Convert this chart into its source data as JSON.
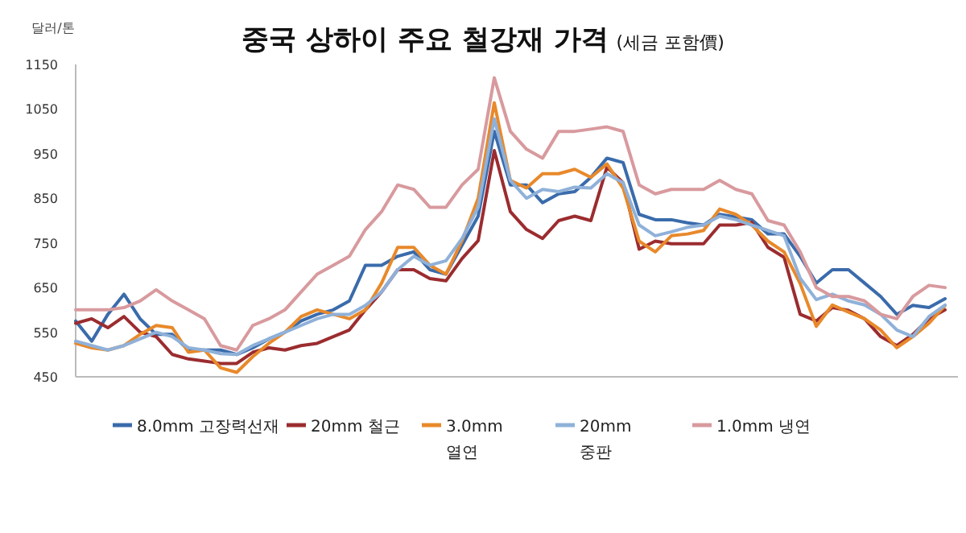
{
  "chart_data": {
    "type": "line",
    "title": "중국 상하이 주요 철강재 가격",
    "subtitle": "(세금 포함價)",
    "ylabel": "달러/톤",
    "categories": [
      null,
      null,
      null,
      null,
      null,
      null,
      null,
      null,
      null,
      null,
      null,
      null,
      null,
      null,
      null,
      null,
      null,
      null,
      null,
      null,
      null,
      null,
      null,
      null,
      null,
      null,
      null,
      null,
      null,
      null,
      null,
      null,
      null,
      null,
      null,
      null,
      null,
      null,
      null,
      null,
      null,
      null,
      null,
      null,
      null,
      null,
      null,
      null,
      null,
      null,
      null,
      null,
      null,
      null,
      null
    ],
    "ylim": [
      450,
      1150
    ],
    "yticks": [
      450,
      550,
      650,
      750,
      850,
      950,
      1050,
      1150
    ],
    "tick_labels": "y",
    "legend": "bottom",
    "grid": false,
    "series": [
      {
        "name": "8.0mm 고장력선재",
        "color": "#3a6bab",
        "values": [
          575,
          530,
          590,
          635,
          580,
          545,
          545,
          510,
          510,
          510,
          500,
          515,
          535,
          550,
          575,
          590,
          600,
          620,
          700,
          700,
          720,
          730,
          690,
          680,
          745,
          810,
          1000,
          880,
          880,
          840,
          860,
          865,
          897,
          940,
          930,
          814,
          802,
          802,
          795,
          790,
          814,
          808,
          802,
          770,
          770,
          720,
          660,
          690,
          690,
          660,
          630,
          590,
          610,
          605,
          625
        ]
      },
      {
        "name": "20mm 철근",
        "color": "#9b2c2f",
        "values": [
          570,
          580,
          560,
          585,
          550,
          540,
          500,
          490,
          485,
          480,
          480,
          505,
          515,
          510,
          520,
          525,
          540,
          555,
          600,
          640,
          690,
          690,
          670,
          665,
          715,
          755,
          957,
          820,
          780,
          760,
          800,
          810,
          800,
          920,
          885,
          736,
          754,
          748,
          748,
          748,
          790,
          790,
          796,
          740,
          718,
          590,
          575,
          605,
          599,
          580,
          540,
          520,
          545,
          580,
          600
        ]
      },
      {
        "name": "3.0mm 열연",
        "color": "#e8892b",
        "values": [
          525,
          515,
          510,
          520,
          545,
          565,
          560,
          505,
          510,
          470,
          460,
          495,
          525,
          550,
          585,
          600,
          590,
          580,
          600,
          660,
          740,
          740,
          700,
          680,
          755,
          850,
          1064,
          890,
          873,
          905,
          905,
          915,
          897,
          927,
          873,
          754,
          730,
          766,
          770,
          778,
          826,
          814,
          790,
          754,
          730,
          659,
          563,
          611,
          595,
          580,
          555,
          515,
          540,
          570,
          610
        ]
      },
      {
        "name": "20mm 중판",
        "color": "#8fb1d9",
        "values": [
          530,
          520,
          510,
          520,
          535,
          550,
          540,
          515,
          510,
          502,
          500,
          520,
          535,
          550,
          565,
          580,
          590,
          590,
          610,
          640,
          690,
          720,
          700,
          710,
          760,
          830,
          1028,
          890,
          850,
          870,
          865,
          875,
          873,
          905,
          885,
          790,
          766,
          775,
          785,
          790,
          810,
          802,
          790,
          778,
          766,
          671,
          623,
          635,
          620,
          611,
          590,
          555,
          540,
          585,
          611
        ]
      },
      {
        "name": "1.0mm 냉연",
        "color": "#d89a9e",
        "values": [
          600,
          600,
          600,
          605,
          620,
          645,
          620,
          600,
          580,
          520,
          510,
          565,
          580,
          600,
          640,
          680,
          700,
          720,
          780,
          820,
          880,
          870,
          830,
          830,
          880,
          915,
          1120,
          1000,
          960,
          940,
          1000,
          1000,
          1005,
          1010,
          1000,
          880,
          860,
          870,
          870,
          870,
          890,
          870,
          860,
          800,
          790,
          730,
          650,
          630,
          630,
          620,
          590,
          580,
          630,
          655,
          650
        ]
      }
    ]
  }
}
